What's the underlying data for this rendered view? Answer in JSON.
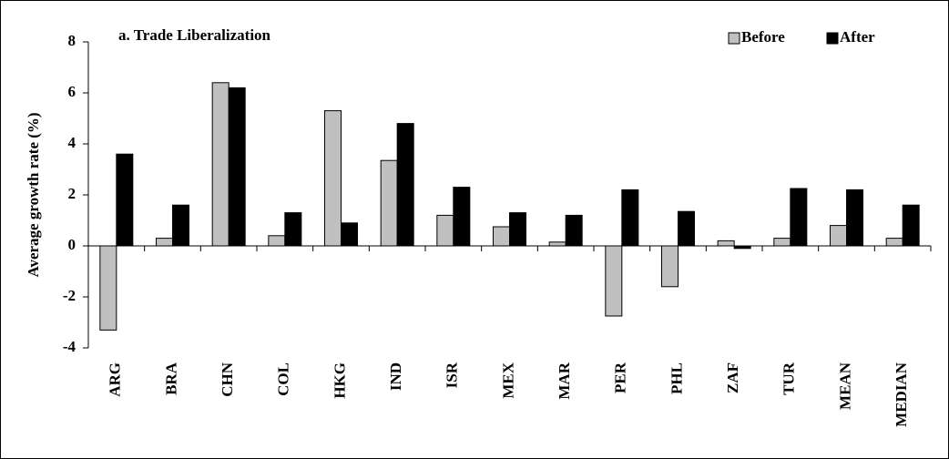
{
  "chart_data": {
    "type": "bar",
    "title": "a. Trade Liberalization",
    "ylabel": "Average growth rate (%)",
    "categories": [
      "ARG",
      "BRA",
      "CHN",
      "COL",
      "HKG",
      "IND",
      "ISR",
      "MEX",
      "MAR",
      "PER",
      "PHL",
      "ZAF",
      "TUR",
      "MEAN",
      "MEDIAN"
    ],
    "series": [
      {
        "name": "Before",
        "color": "#c0c0c0",
        "values": [
          -3.3,
          0.3,
          6.4,
          0.4,
          5.3,
          3.35,
          1.2,
          0.75,
          0.15,
          -2.75,
          -1.6,
          0.2,
          0.3,
          0.8,
          0.3
        ]
      },
      {
        "name": "After",
        "color": "#000000",
        "values": [
          3.6,
          1.6,
          6.2,
          1.3,
          0.9,
          4.8,
          2.3,
          1.3,
          1.2,
          2.2,
          1.35,
          -0.1,
          2.25,
          2.2,
          1.6
        ]
      }
    ],
    "ylim": [
      -4,
      8
    ],
    "yticks": [
      -4,
      -2,
      0,
      2,
      4,
      6,
      8
    ],
    "legend": "top-right"
  }
}
